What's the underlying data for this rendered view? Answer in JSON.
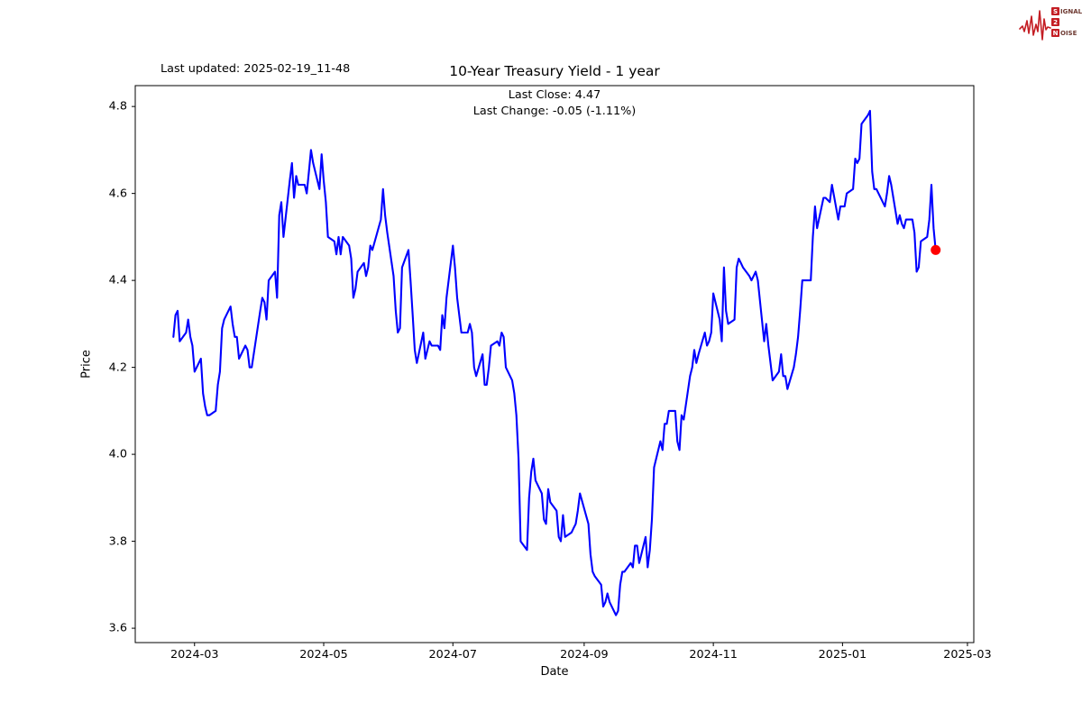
{
  "header": {
    "last_updated": "Last updated: 2025-02-19_11-48"
  },
  "logo": {
    "row1_initial": "S",
    "row1_rest": "IGNAL",
    "row2_initial": "2",
    "row2_rest": "",
    "row3_initial": "N",
    "row3_rest": "OISE",
    "color": "#c41e24"
  },
  "chart_data": {
    "type": "line",
    "title": "10-Year Treasury Yield - 1 year",
    "subtitle_line1": "Last Close: 4.47",
    "subtitle_line2": "Last Change: -0.05 (-1.11%)",
    "xlabel": "Date",
    "ylabel": "Price",
    "line_color": "#0000ff",
    "marker_color": "#ff0000",
    "axis_color": "#000000",
    "grid": false,
    "legend": "none",
    "ylim": [
      3.567,
      4.848
    ],
    "xlim": [
      "2024-02-02",
      "2025-03-04"
    ],
    "y_ticks": [
      3.6,
      3.8,
      4.0,
      4.2,
      4.4,
      4.6,
      4.8
    ],
    "x_ticks": [
      {
        "date": "2024-03-01",
        "label": "2024-03"
      },
      {
        "date": "2024-05-01",
        "label": "2024-05"
      },
      {
        "date": "2024-07-01",
        "label": "2024-07"
      },
      {
        "date": "2024-09-01",
        "label": "2024-09"
      },
      {
        "date": "2024-11-01",
        "label": "2024-11"
      },
      {
        "date": "2025-01-01",
        "label": "2025-01"
      },
      {
        "date": "2025-03-01",
        "label": "2025-03"
      }
    ],
    "last_point": {
      "date": "2025-02-14",
      "value": 4.47
    },
    "series": [
      {
        "name": "10-Year Treasury Yield",
        "points": [
          [
            "2024-02-20",
            4.27
          ],
          [
            "2024-02-21",
            4.32
          ],
          [
            "2024-02-22",
            4.33
          ],
          [
            "2024-02-23",
            4.26
          ],
          [
            "2024-02-26",
            4.28
          ],
          [
            "2024-02-27",
            4.31
          ],
          [
            "2024-02-28",
            4.27
          ],
          [
            "2024-02-29",
            4.25
          ],
          [
            "2024-03-01",
            4.19
          ],
          [
            "2024-03-04",
            4.22
          ],
          [
            "2024-03-05",
            4.14
          ],
          [
            "2024-03-06",
            4.11
          ],
          [
            "2024-03-07",
            4.09
          ],
          [
            "2024-03-08",
            4.09
          ],
          [
            "2024-03-11",
            4.1
          ],
          [
            "2024-03-12",
            4.16
          ],
          [
            "2024-03-13",
            4.19
          ],
          [
            "2024-03-14",
            4.29
          ],
          [
            "2024-03-15",
            4.31
          ],
          [
            "2024-03-18",
            4.34
          ],
          [
            "2024-03-19",
            4.3
          ],
          [
            "2024-03-20",
            4.27
          ],
          [
            "2024-03-21",
            4.27
          ],
          [
            "2024-03-22",
            4.22
          ],
          [
            "2024-03-25",
            4.25
          ],
          [
            "2024-03-26",
            4.24
          ],
          [
            "2024-03-27",
            4.2
          ],
          [
            "2024-03-28",
            4.2
          ],
          [
            "2024-04-01",
            4.33
          ],
          [
            "2024-04-02",
            4.36
          ],
          [
            "2024-04-03",
            4.35
          ],
          [
            "2024-04-04",
            4.31
          ],
          [
            "2024-04-05",
            4.4
          ],
          [
            "2024-04-08",
            4.42
          ],
          [
            "2024-04-09",
            4.36
          ],
          [
            "2024-04-10",
            4.55
          ],
          [
            "2024-04-11",
            4.58
          ],
          [
            "2024-04-12",
            4.5
          ],
          [
            "2024-04-15",
            4.63
          ],
          [
            "2024-04-16",
            4.67
          ],
          [
            "2024-04-17",
            4.59
          ],
          [
            "2024-04-18",
            4.64
          ],
          [
            "2024-04-19",
            4.62
          ],
          [
            "2024-04-22",
            4.62
          ],
          [
            "2024-04-23",
            4.6
          ],
          [
            "2024-04-24",
            4.65
          ],
          [
            "2024-04-25",
            4.7
          ],
          [
            "2024-04-26",
            4.67
          ],
          [
            "2024-04-29",
            4.61
          ],
          [
            "2024-04-30",
            4.69
          ],
          [
            "2024-05-01",
            4.63
          ],
          [
            "2024-05-02",
            4.58
          ],
          [
            "2024-05-03",
            4.5
          ],
          [
            "2024-05-06",
            4.49
          ],
          [
            "2024-05-07",
            4.46
          ],
          [
            "2024-05-08",
            4.5
          ],
          [
            "2024-05-09",
            4.46
          ],
          [
            "2024-05-10",
            4.5
          ],
          [
            "2024-05-13",
            4.48
          ],
          [
            "2024-05-14",
            4.45
          ],
          [
            "2024-05-15",
            4.36
          ],
          [
            "2024-05-16",
            4.38
          ],
          [
            "2024-05-17",
            4.42
          ],
          [
            "2024-05-20",
            4.44
          ],
          [
            "2024-05-21",
            4.41
          ],
          [
            "2024-05-22",
            4.43
          ],
          [
            "2024-05-23",
            4.48
          ],
          [
            "2024-05-24",
            4.47
          ],
          [
            "2024-05-28",
            4.54
          ],
          [
            "2024-05-29",
            4.61
          ],
          [
            "2024-05-30",
            4.55
          ],
          [
            "2024-05-31",
            4.51
          ],
          [
            "2024-06-03",
            4.41
          ],
          [
            "2024-06-04",
            4.33
          ],
          [
            "2024-06-05",
            4.28
          ],
          [
            "2024-06-06",
            4.29
          ],
          [
            "2024-06-07",
            4.43
          ],
          [
            "2024-06-10",
            4.47
          ],
          [
            "2024-06-11",
            4.4
          ],
          [
            "2024-06-12",
            4.32
          ],
          [
            "2024-06-13",
            4.24
          ],
          [
            "2024-06-14",
            4.21
          ],
          [
            "2024-06-17",
            4.28
          ],
          [
            "2024-06-18",
            4.22
          ],
          [
            "2024-06-20",
            4.26
          ],
          [
            "2024-06-21",
            4.25
          ],
          [
            "2024-06-24",
            4.25
          ],
          [
            "2024-06-25",
            4.24
          ],
          [
            "2024-06-26",
            4.32
          ],
          [
            "2024-06-27",
            4.29
          ],
          [
            "2024-06-28",
            4.36
          ],
          [
            "2024-07-01",
            4.48
          ],
          [
            "2024-07-02",
            4.43
          ],
          [
            "2024-07-03",
            4.36
          ],
          [
            "2024-07-05",
            4.28
          ],
          [
            "2024-07-08",
            4.28
          ],
          [
            "2024-07-09",
            4.3
          ],
          [
            "2024-07-10",
            4.28
          ],
          [
            "2024-07-11",
            4.2
          ],
          [
            "2024-07-12",
            4.18
          ],
          [
            "2024-07-15",
            4.23
          ],
          [
            "2024-07-16",
            4.16
          ],
          [
            "2024-07-17",
            4.16
          ],
          [
            "2024-07-18",
            4.2
          ],
          [
            "2024-07-19",
            4.25
          ],
          [
            "2024-07-22",
            4.26
          ],
          [
            "2024-07-23",
            4.25
          ],
          [
            "2024-07-24",
            4.28
          ],
          [
            "2024-07-25",
            4.27
          ],
          [
            "2024-07-26",
            4.2
          ],
          [
            "2024-07-29",
            4.17
          ],
          [
            "2024-07-30",
            4.14
          ],
          [
            "2024-07-31",
            4.09
          ],
          [
            "2024-08-01",
            3.99
          ],
          [
            "2024-08-02",
            3.8
          ],
          [
            "2024-08-05",
            3.78
          ],
          [
            "2024-08-06",
            3.9
          ],
          [
            "2024-08-07",
            3.96
          ],
          [
            "2024-08-08",
            3.99
          ],
          [
            "2024-08-09",
            3.94
          ],
          [
            "2024-08-12",
            3.91
          ],
          [
            "2024-08-13",
            3.85
          ],
          [
            "2024-08-14",
            3.84
          ],
          [
            "2024-08-15",
            3.92
          ],
          [
            "2024-08-16",
            3.89
          ],
          [
            "2024-08-19",
            3.87
          ],
          [
            "2024-08-20",
            3.81
          ],
          [
            "2024-08-21",
            3.8
          ],
          [
            "2024-08-22",
            3.86
          ],
          [
            "2024-08-23",
            3.81
          ],
          [
            "2024-08-26",
            3.82
          ],
          [
            "2024-08-27",
            3.83
          ],
          [
            "2024-08-28",
            3.84
          ],
          [
            "2024-08-29",
            3.87
          ],
          [
            "2024-08-30",
            3.91
          ],
          [
            "2024-09-03",
            3.84
          ],
          [
            "2024-09-04",
            3.77
          ],
          [
            "2024-09-05",
            3.73
          ],
          [
            "2024-09-06",
            3.72
          ],
          [
            "2024-09-09",
            3.7
          ],
          [
            "2024-09-10",
            3.65
          ],
          [
            "2024-09-11",
            3.66
          ],
          [
            "2024-09-12",
            3.68
          ],
          [
            "2024-09-13",
            3.66
          ],
          [
            "2024-09-16",
            3.63
          ],
          [
            "2024-09-17",
            3.64
          ],
          [
            "2024-09-18",
            3.7
          ],
          [
            "2024-09-19",
            3.73
          ],
          [
            "2024-09-20",
            3.73
          ],
          [
            "2024-09-23",
            3.75
          ],
          [
            "2024-09-24",
            3.74
          ],
          [
            "2024-09-25",
            3.79
          ],
          [
            "2024-09-26",
            3.79
          ],
          [
            "2024-09-27",
            3.75
          ],
          [
            "2024-09-30",
            3.81
          ],
          [
            "2024-10-01",
            3.74
          ],
          [
            "2024-10-02",
            3.78
          ],
          [
            "2024-10-03",
            3.85
          ],
          [
            "2024-10-04",
            3.97
          ],
          [
            "2024-10-07",
            4.03
          ],
          [
            "2024-10-08",
            4.01
          ],
          [
            "2024-10-09",
            4.07
          ],
          [
            "2024-10-10",
            4.07
          ],
          [
            "2024-10-11",
            4.1
          ],
          [
            "2024-10-14",
            4.1
          ],
          [
            "2024-10-15",
            4.03
          ],
          [
            "2024-10-16",
            4.01
          ],
          [
            "2024-10-17",
            4.09
          ],
          [
            "2024-10-18",
            4.08
          ],
          [
            "2024-10-21",
            4.18
          ],
          [
            "2024-10-22",
            4.2
          ],
          [
            "2024-10-23",
            4.24
          ],
          [
            "2024-10-24",
            4.21
          ],
          [
            "2024-10-25",
            4.23
          ],
          [
            "2024-10-28",
            4.28
          ],
          [
            "2024-10-29",
            4.25
          ],
          [
            "2024-10-30",
            4.26
          ],
          [
            "2024-10-31",
            4.28
          ],
          [
            "2024-11-01",
            4.37
          ],
          [
            "2024-11-04",
            4.31
          ],
          [
            "2024-11-05",
            4.26
          ],
          [
            "2024-11-06",
            4.43
          ],
          [
            "2024-11-07",
            4.33
          ],
          [
            "2024-11-08",
            4.3
          ],
          [
            "2024-11-11",
            4.31
          ],
          [
            "2024-11-12",
            4.43
          ],
          [
            "2024-11-13",
            4.45
          ],
          [
            "2024-11-14",
            4.44
          ],
          [
            "2024-11-15",
            4.43
          ],
          [
            "2024-11-18",
            4.41
          ],
          [
            "2024-11-19",
            4.4
          ],
          [
            "2024-11-20",
            4.41
          ],
          [
            "2024-11-21",
            4.42
          ],
          [
            "2024-11-22",
            4.4
          ],
          [
            "2024-11-25",
            4.26
          ],
          [
            "2024-11-26",
            4.3
          ],
          [
            "2024-11-27",
            4.25
          ],
          [
            "2024-11-29",
            4.17
          ],
          [
            "2024-12-02",
            4.19
          ],
          [
            "2024-12-03",
            4.23
          ],
          [
            "2024-12-04",
            4.18
          ],
          [
            "2024-12-05",
            4.18
          ],
          [
            "2024-12-06",
            4.15
          ],
          [
            "2024-12-09",
            4.2
          ],
          [
            "2024-12-10",
            4.23
          ],
          [
            "2024-12-11",
            4.27
          ],
          [
            "2024-12-12",
            4.33
          ],
          [
            "2024-12-13",
            4.4
          ],
          [
            "2024-12-16",
            4.4
          ],
          [
            "2024-12-17",
            4.4
          ],
          [
            "2024-12-18",
            4.5
          ],
          [
            "2024-12-19",
            4.57
          ],
          [
            "2024-12-20",
            4.52
          ],
          [
            "2024-12-23",
            4.59
          ],
          [
            "2024-12-24",
            4.59
          ],
          [
            "2024-12-26",
            4.58
          ],
          [
            "2024-12-27",
            4.62
          ],
          [
            "2024-12-30",
            4.54
          ],
          [
            "2024-12-31",
            4.57
          ],
          [
            "2025-01-02",
            4.57
          ],
          [
            "2025-01-03",
            4.6
          ],
          [
            "2025-01-06",
            4.61
          ],
          [
            "2025-01-07",
            4.68
          ],
          [
            "2025-01-08",
            4.67
          ],
          [
            "2025-01-09",
            4.68
          ],
          [
            "2025-01-10",
            4.76
          ],
          [
            "2025-01-13",
            4.78
          ],
          [
            "2025-01-14",
            4.79
          ],
          [
            "2025-01-15",
            4.65
          ],
          [
            "2025-01-16",
            4.61
          ],
          [
            "2025-01-17",
            4.61
          ],
          [
            "2025-01-21",
            4.57
          ],
          [
            "2025-01-22",
            4.6
          ],
          [
            "2025-01-23",
            4.64
          ],
          [
            "2025-01-24",
            4.62
          ],
          [
            "2025-01-27",
            4.53
          ],
          [
            "2025-01-28",
            4.55
          ],
          [
            "2025-01-29",
            4.53
          ],
          [
            "2025-01-30",
            4.52
          ],
          [
            "2025-01-31",
            4.54
          ],
          [
            "2025-02-03",
            4.54
          ],
          [
            "2025-02-04",
            4.51
          ],
          [
            "2025-02-05",
            4.42
          ],
          [
            "2025-02-06",
            4.43
          ],
          [
            "2025-02-07",
            4.49
          ],
          [
            "2025-02-10",
            4.5
          ],
          [
            "2025-02-11",
            4.54
          ],
          [
            "2025-02-12",
            4.62
          ],
          [
            "2025-02-13",
            4.52
          ],
          [
            "2025-02-14",
            4.47
          ]
        ]
      }
    ]
  }
}
